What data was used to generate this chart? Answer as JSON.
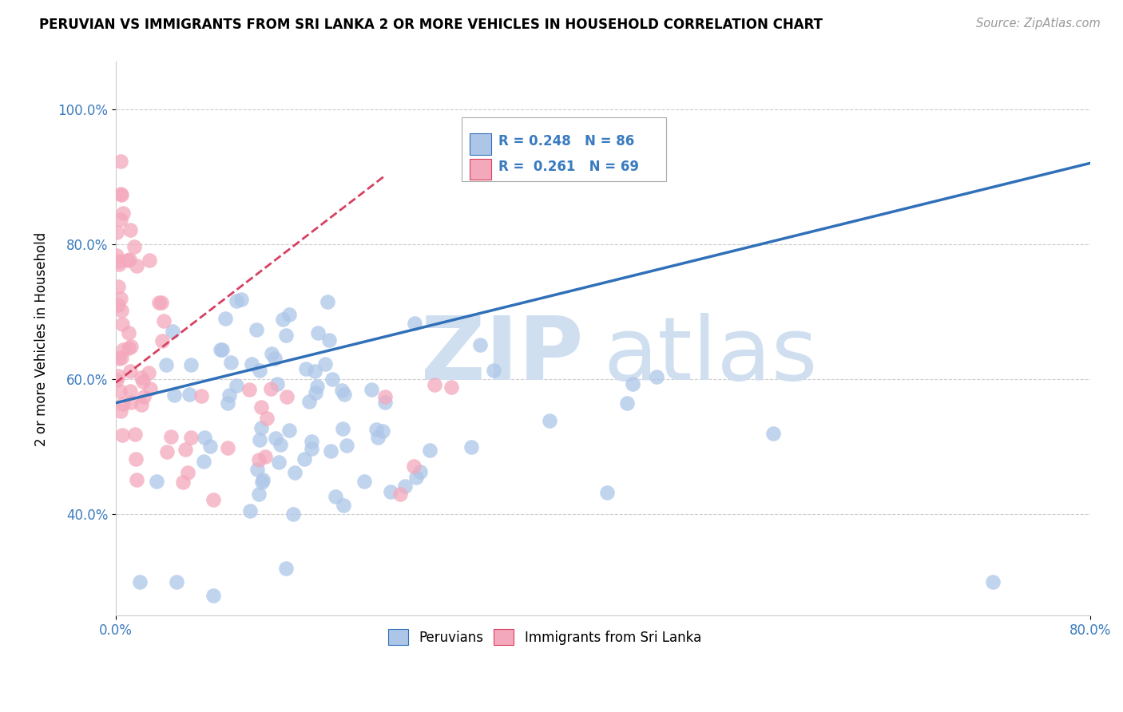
{
  "title": "PERUVIAN VS IMMIGRANTS FROM SRI LANKA 2 OR MORE VEHICLES IN HOUSEHOLD CORRELATION CHART",
  "source_text": "Source: ZipAtlas.com",
  "ylabel": "2 or more Vehicles in Household",
  "xlim": [
    0.0,
    0.8
  ],
  "ylim": [
    0.25,
    1.07
  ],
  "ytick_values": [
    0.4,
    0.6,
    0.8,
    1.0
  ],
  "peruvians_R": 0.248,
  "peruvians_N": 86,
  "srilanka_R": 0.261,
  "srilanka_N": 69,
  "peruvian_color": "#adc6e8",
  "srilanka_color": "#f4a8bc",
  "peruvian_line_color": "#3070b8",
  "srilanka_line_color": "#d84060",
  "watermark_zip": "ZIP",
  "watermark_atlas": "atlas",
  "watermark_color": "#d0dff0",
  "legend_label_peruvians": "Peruvians",
  "legend_label_srilanka": "Immigrants from Sri Lanka",
  "peru_trend_x0": 0.0,
  "peru_trend_y0": 0.565,
  "peru_trend_x1": 0.8,
  "peru_trend_y1": 0.92,
  "sl_trend_x0": 0.0,
  "sl_trend_y0": 0.595,
  "sl_trend_x1": 0.22,
  "sl_trend_y1": 0.9
}
